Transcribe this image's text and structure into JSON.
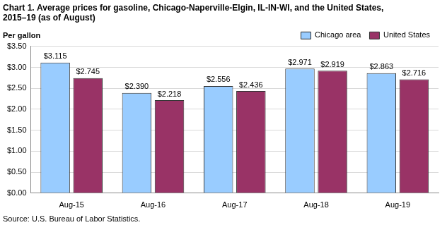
{
  "chart_data": {
    "type": "bar",
    "title": [
      "Chart 1. Average prices for gasoline, Chicago-Naperville-Elgin, IL-IN-WI, and the United States,",
      "2015–19 (as of August)"
    ],
    "ylabel": "Per gallon",
    "source": "Source: U.S. Bureau of Labor Statistics.",
    "categories": [
      "Aug-15",
      "Aug-16",
      "Aug-17",
      "Aug-18",
      "Aug-19"
    ],
    "series": [
      {
        "name": "Chicago area",
        "color": "#99ccff",
        "values": [
          3.115,
          2.39,
          2.556,
          2.971,
          2.863
        ],
        "value_labels": [
          "$3.115",
          "$2.390",
          "$2.556",
          "$2.971",
          "$2.863"
        ]
      },
      {
        "name": "United States",
        "color": "#993366",
        "values": [
          2.745,
          2.218,
          2.436,
          2.919,
          2.716
        ],
        "value_labels": [
          "$2.745",
          "$2.218",
          "$2.436",
          "$2.919",
          "$2.716"
        ]
      }
    ],
    "ylim": [
      0,
      3.5
    ],
    "yticks": [
      {
        "value": 0,
        "label": "$0.00"
      },
      {
        "value": 0.5,
        "label": "$0.50"
      },
      {
        "value": 1,
        "label": "$1.00"
      },
      {
        "value": 1.5,
        "label": "$1.50"
      },
      {
        "value": 2,
        "label": "$2.00"
      },
      {
        "value": 2.5,
        "label": "$2.50"
      },
      {
        "value": 3,
        "label": "$3.00"
      },
      {
        "value": 3.5,
        "label": "$3.50"
      }
    ],
    "grid": true,
    "legend": "top-right",
    "data_labels": true
  }
}
